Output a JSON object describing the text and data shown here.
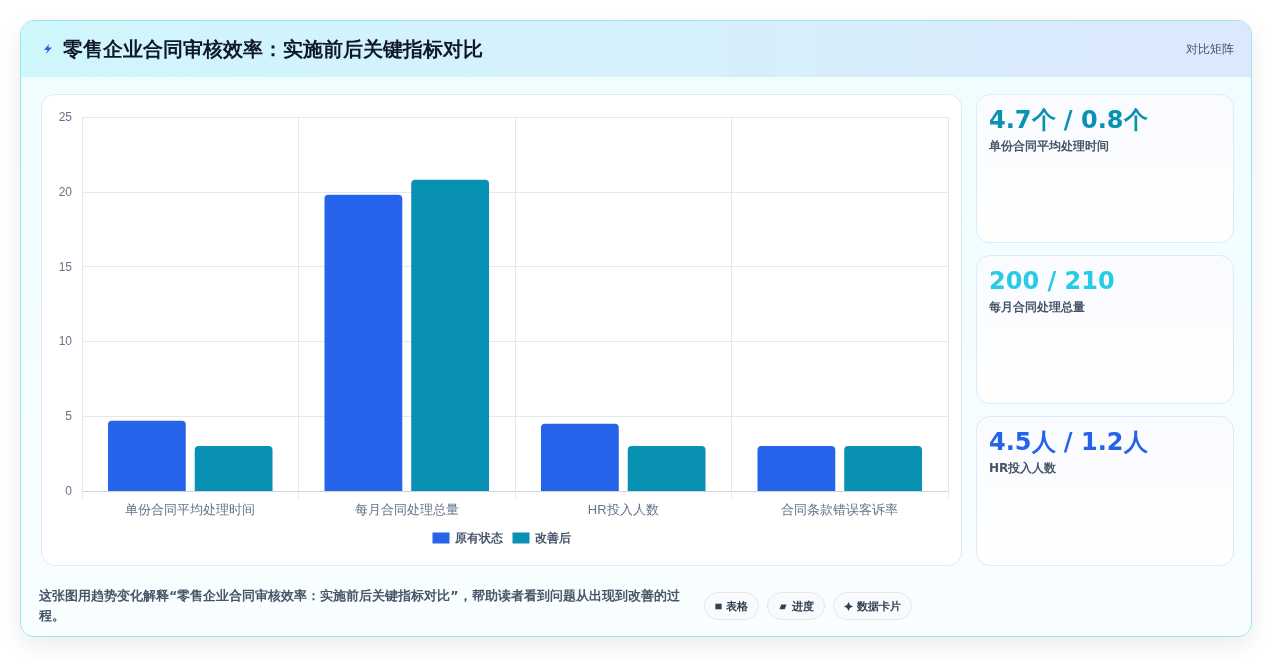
{
  "chart_data": [
    {
      "type": "bar",
      "title": "零售企业合同审核效率：实施前后关键指标对比",
      "categories": [
        "单份合同平均处理时间",
        "每月合同处理总量",
        "HR投入人数",
        "合同条款错误客诉率"
      ],
      "series": [
        {
          "name": "原有状态",
          "color": "#2563eb",
          "values": [
            4.7,
            19.8,
            4.5,
            3
          ]
        },
        {
          "name": "改善后",
          "color": "#0891b2",
          "values": [
            3,
            20.8,
            3,
            3
          ]
        }
      ],
      "ylim": [
        0,
        25
      ],
      "yticks": [
        0,
        5,
        10,
        15,
        20,
        25
      ],
      "grid": true,
      "legend": "bottom",
      "annotations": [
        "这张图用趋势变化解释“零售企业合同审核效率：实施前后关键指标对比”，帮助读者看到问题从出现到改善的过程。",
        "表格",
        "进度",
        "数据卡片"
      ]
    },
    {
      "type": "other",
      "title": "4.7个 / 0.8个",
      "subtitle": "单份合同平均处理时间",
      "color": "#0891b2",
      "annotations": [
        "对比矩阵"
      ]
    },
    {
      "type": "other",
      "title": "200 / 210",
      "subtitle": "每月合同处理总量",
      "color": "#28cbe6"
    },
    {
      "type": "other",
      "title": "4.5人 / 1.2人",
      "subtitle": "HR投入人数",
      "color": "#2563eb"
    }
  ]
}
